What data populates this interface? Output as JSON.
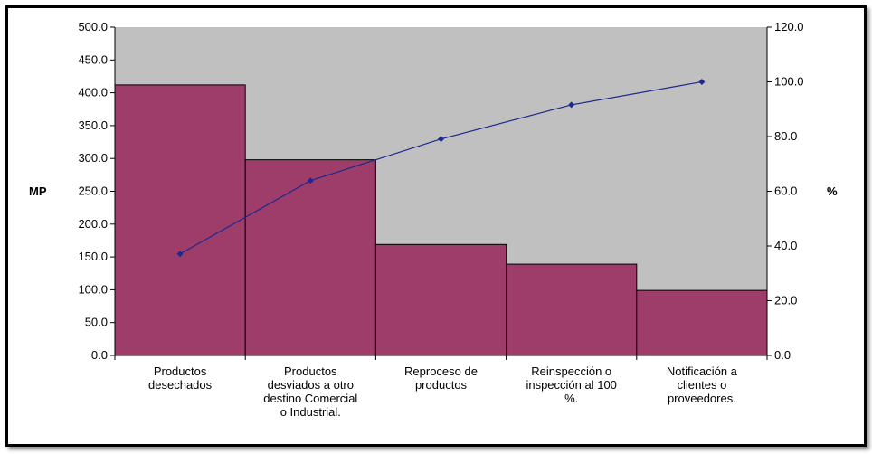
{
  "chart_data": {
    "type": "bar",
    "categories": [
      [
        "Productos",
        "desechados"
      ],
      [
        "Productos",
        "desviados a otro",
        "destino Comercial",
        "o Industrial."
      ],
      [
        "Reproceso de",
        "productos"
      ],
      [
        "Reinspección o",
        "inspección al 100",
        "%."
      ],
      [
        "Notificación a",
        "clientes o",
        "proveedores."
      ]
    ],
    "series": [
      {
        "type": "bar",
        "values": [
          412,
          298,
          169,
          139,
          99
        ],
        "color": "#9e3c6a"
      },
      {
        "type": "line",
        "axis": "right",
        "values": [
          37.1,
          63.9,
          79.1,
          91.6,
          100.0
        ],
        "color": "#1c2a8e"
      }
    ],
    "ylabel": "MP",
    "y2label": "%",
    "ylim": [
      0,
      500
    ],
    "y2lim": [
      0,
      120
    ],
    "yticks": [
      "0.0",
      "50.0",
      "100.0",
      "150.0",
      "200.0",
      "250.0",
      "300.0",
      "350.0",
      "400.0",
      "450.0",
      "500.0"
    ],
    "y2ticks": [
      "0.0",
      "20.0",
      "40.0",
      "60.0",
      "80.0",
      "100.0",
      "120.0"
    ],
    "plot_background": "#c0c0c0",
    "grid": false,
    "legend": "none"
  }
}
